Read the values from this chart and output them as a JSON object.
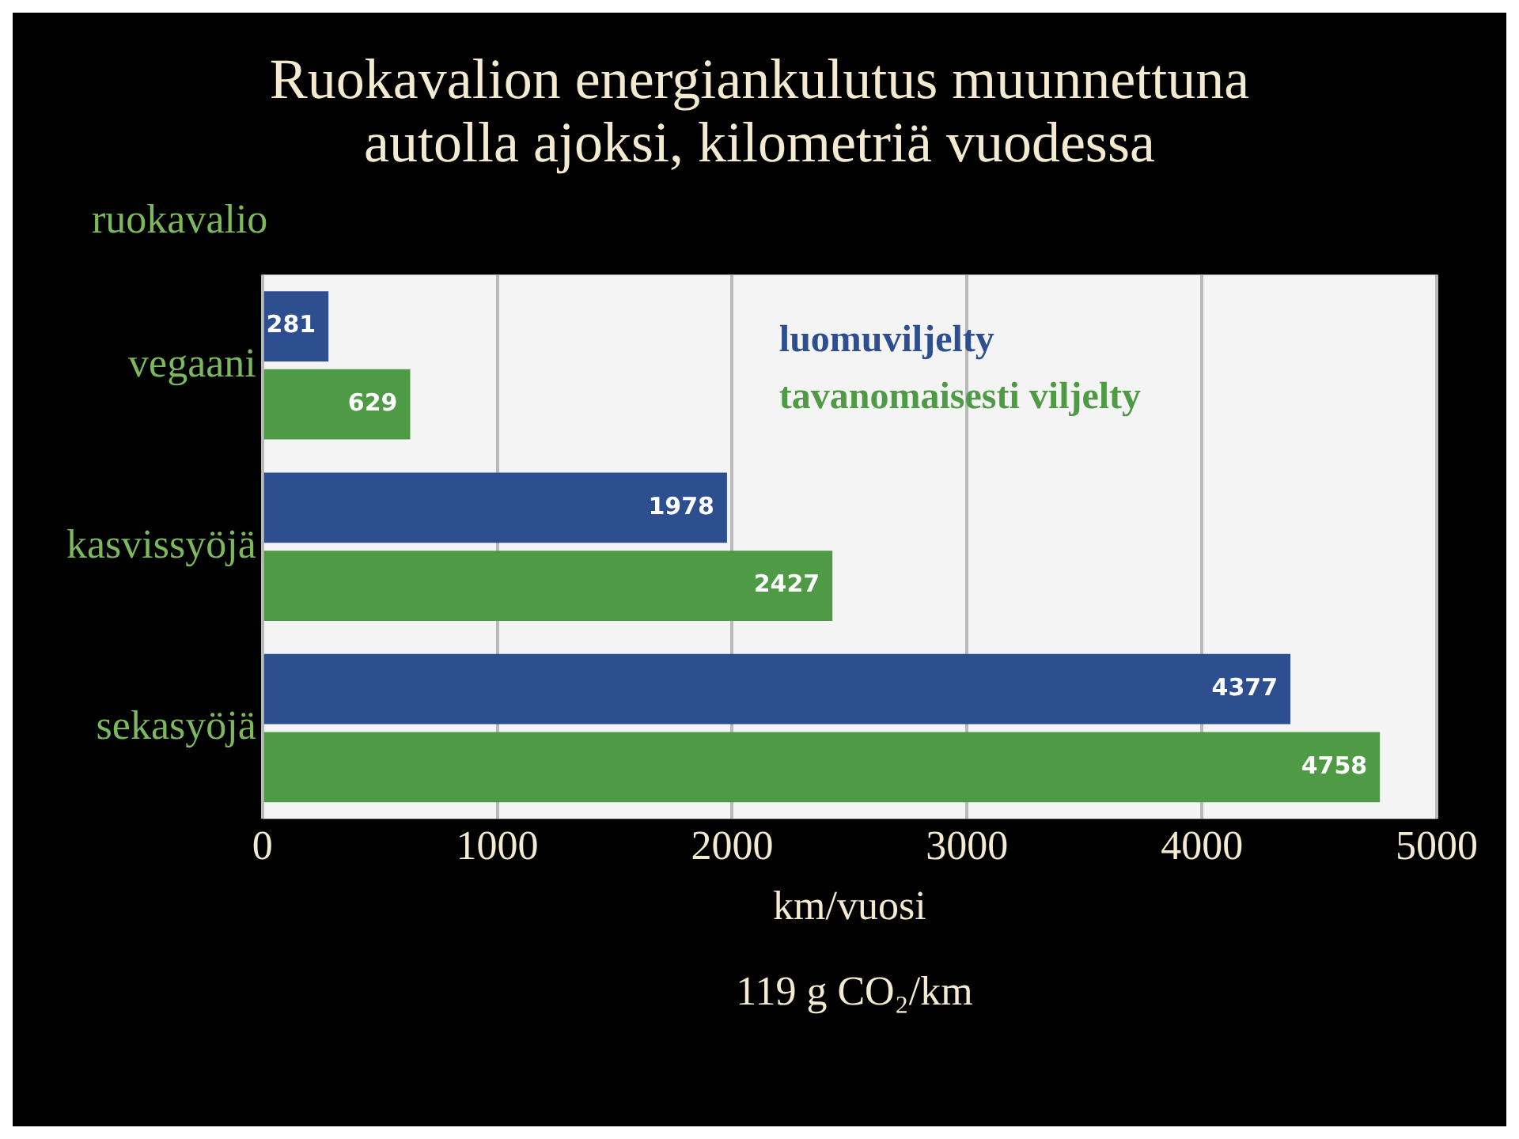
{
  "chart_data": {
    "type": "bar",
    "orientation": "horizontal",
    "title": "Ruokavalion energiankulutus muunnettuna autolla ajoksi, kilometriä vuodessa",
    "ylabel": "ruokavalio",
    "xlabel": "km/vuosi",
    "categories": [
      "vegaani",
      "kasvissyöjä",
      "sekasyöjä"
    ],
    "series": [
      {
        "name": "luomuviljelty",
        "color": "#2e4f8f",
        "values": [
          281,
          1978,
          4377
        ]
      },
      {
        "name": "tavanomaisesti viljelty",
        "color": "#4e9a45",
        "values": [
          629,
          2427,
          4758
        ]
      }
    ],
    "xlim": [
      0,
      5000
    ],
    "xticks": [
      0,
      1000,
      2000,
      3000,
      4000,
      5000
    ],
    "grid": "x",
    "legend": "top right",
    "data_labels": true,
    "annotations": [
      "119 g CO₂/km"
    ]
  }
}
